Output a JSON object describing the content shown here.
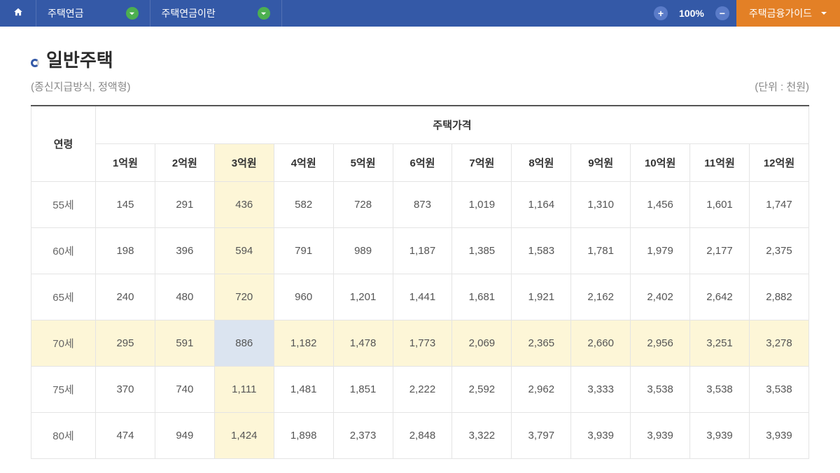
{
  "nav": {
    "item1": "주택연금",
    "item2": "주택연금이란",
    "zoom": "100%",
    "guide": "주택금융가이드"
  },
  "page": {
    "title": "일반주택",
    "subtitle": "(종신지급방식, 정액형)",
    "unit": "(단위 : 천원)"
  },
  "table": {
    "corner": "연령",
    "group_header": "주택가격",
    "columns": [
      "1억원",
      "2억원",
      "3억원",
      "4억원",
      "5억원",
      "6억원",
      "7억원",
      "8억원",
      "9억원",
      "10억원",
      "11억원",
      "12억원"
    ],
    "rows": [
      {
        "age": "55세",
        "vals": [
          "145",
          "291",
          "436",
          "582",
          "728",
          "873",
          "1,019",
          "1,164",
          "1,310",
          "1,456",
          "1,601",
          "1,747"
        ]
      },
      {
        "age": "60세",
        "vals": [
          "198",
          "396",
          "594",
          "791",
          "989",
          "1,187",
          "1,385",
          "1,583",
          "1,781",
          "1,979",
          "2,177",
          "2,375"
        ]
      },
      {
        "age": "65세",
        "vals": [
          "240",
          "480",
          "720",
          "960",
          "1,201",
          "1,441",
          "1,681",
          "1,921",
          "2,162",
          "2,402",
          "2,642",
          "2,882"
        ]
      },
      {
        "age": "70세",
        "vals": [
          "295",
          "591",
          "886",
          "1,182",
          "1,478",
          "1,773",
          "2,069",
          "2,365",
          "2,660",
          "2,956",
          "3,251",
          "3,278"
        ]
      },
      {
        "age": "75세",
        "vals": [
          "370",
          "740",
          "1,111",
          "1,481",
          "1,851",
          "2,222",
          "2,592",
          "2,962",
          "3,333",
          "3,538",
          "3,538",
          "3,538"
        ]
      },
      {
        "age": "80세",
        "vals": [
          "474",
          "949",
          "1,424",
          "1,898",
          "2,373",
          "2,848",
          "3,322",
          "3,797",
          "3,939",
          "3,939",
          "3,939",
          "3,939"
        ]
      }
    ],
    "highlight_col_index": 2,
    "highlight_row_index": 3
  }
}
